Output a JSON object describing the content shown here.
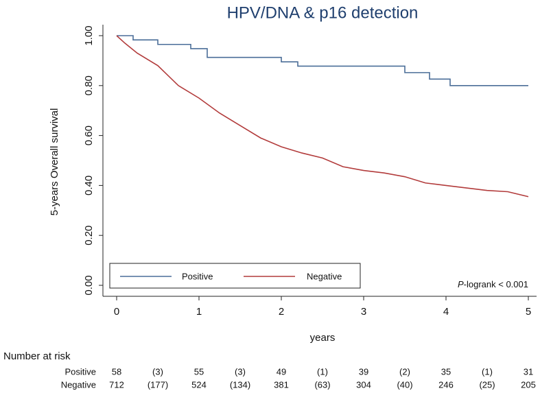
{
  "chart_data": {
    "type": "line",
    "title": "HPV/DNA & p16 detection",
    "xlabel": "years",
    "ylabel": "5-years Overall survival",
    "xlim": [
      0,
      5
    ],
    "xticks": [
      0,
      1,
      2,
      3,
      4,
      5
    ],
    "ylim": [
      0,
      1
    ],
    "yticks": [
      {
        "value": 0,
        "label": "0.00"
      },
      {
        "value": 0.2,
        "label": "0.20"
      },
      {
        "value": 0.4,
        "label": "0.40"
      },
      {
        "value": 0.6,
        "label": "0.60"
      },
      {
        "value": 0.8,
        "label": "0.80"
      },
      {
        "value": 1,
        "label": "1.00"
      }
    ],
    "series": [
      {
        "name": "Positive",
        "color": "#4a6d98",
        "step": true,
        "x": [
          0,
          0.2,
          0.5,
          0.9,
          1.1,
          2.0,
          2.2,
          3.5,
          3.8,
          4.05,
          5
        ],
        "values": [
          1,
          0.983,
          0.965,
          0.948,
          0.913,
          0.895,
          0.878,
          0.852,
          0.826,
          0.8,
          0.8
        ]
      },
      {
        "name": "Negative",
        "color": "#b23b3b",
        "step": false,
        "x": [
          0,
          0.1,
          0.25,
          0.5,
          0.75,
          1,
          1.25,
          1.5,
          1.75,
          2,
          2.25,
          2.5,
          2.75,
          3,
          3.25,
          3.5,
          3.75,
          4,
          4.25,
          4.5,
          4.75,
          5
        ],
        "values": [
          1,
          0.97,
          0.93,
          0.88,
          0.8,
          0.75,
          0.69,
          0.64,
          0.59,
          0.555,
          0.53,
          0.51,
          0.475,
          0.46,
          0.45,
          0.435,
          0.41,
          0.4,
          0.39,
          0.38,
          0.375,
          0.355
        ]
      }
    ],
    "annotation": [
      "P",
      "-logrank < 0.001"
    ],
    "risk_table": {
      "title": "Number at risk",
      "x": [
        0,
        0.5,
        1,
        1.5,
        2,
        2.5,
        3,
        3.5,
        4,
        4.5,
        5
      ],
      "rows": [
        {
          "name": "Positive",
          "cells": [
            "58",
            "(3)",
            "55",
            "(3)",
            "49",
            "(1)",
            "39",
            "(2)",
            "35",
            "(1)",
            "31"
          ]
        },
        {
          "name": "Negative",
          "cells": [
            "712",
            "(177)",
            "524",
            "(134)",
            "381",
            "(63)",
            "304",
            "(40)",
            "246",
            "(25)",
            "205"
          ]
        }
      ]
    }
  }
}
